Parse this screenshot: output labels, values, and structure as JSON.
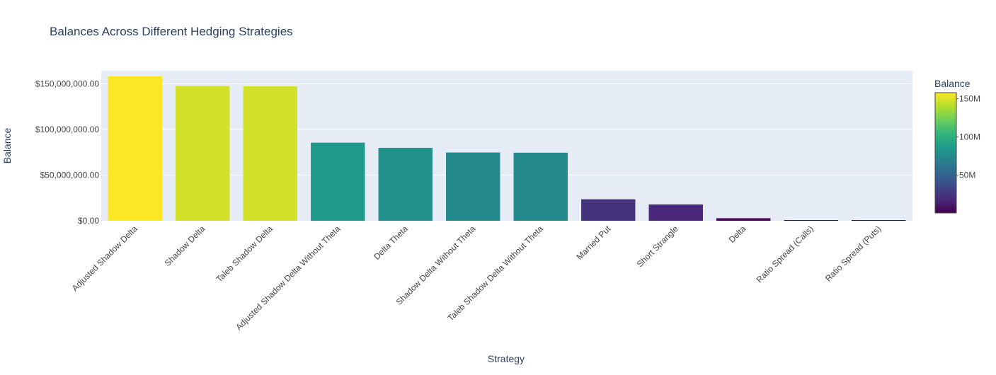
{
  "chart_data": {
    "type": "bar",
    "title": "Balances Across Different Hedging Strategies",
    "xlabel": "Strategy",
    "ylabel": "Balance",
    "categories": [
      "Adjusted Shadow Delta",
      "Shadow Delta",
      "Taleb Shadow Delta",
      "Adjusted Shadow Delta Without Theta",
      "Delta Theta",
      "Shadow Delta Without Theta",
      "Taleb Shadow Delta Without Theta",
      "Married Put",
      "Short Strangle",
      "Delta",
      "Ratio Spread (Calls)",
      "Ratio Spread (Puts)"
    ],
    "values": [
      158000000,
      147500000,
      147200000,
      85500000,
      79800000,
      74700000,
      74500000,
      23500000,
      17800000,
      2800000,
      400000,
      300000
    ],
    "ylim": [
      0,
      164200000
    ],
    "yticks": [
      0,
      50000000,
      100000000,
      150000000
    ],
    "ytick_labels": [
      "$0.00",
      "$50,000,000.00",
      "$100,000,000.00",
      "$150,000,000.00"
    ],
    "grid": true,
    "colorscale": "viridis",
    "colorbar": {
      "title": "Balance",
      "cmin": 300000,
      "cmax": 158000000,
      "ticks": [
        50000000,
        100000000,
        150000000
      ],
      "tick_labels": [
        "50M",
        "100M",
        "150M"
      ]
    },
    "colors": {
      "plot_bg": "#e5ecf6",
      "grid": "#ffffff",
      "text": "#2a3f5f",
      "tick_text": "#444444"
    }
  }
}
